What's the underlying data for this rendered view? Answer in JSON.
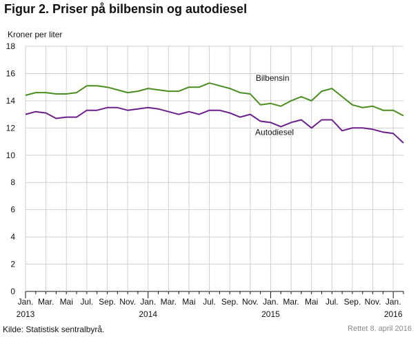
{
  "chart_data": {
    "type": "line",
    "title": "Figur 2. Priser på bilbensin og autodiesel",
    "ylabel": "Kroner per liter",
    "ylim": [
      0,
      18
    ],
    "yticks": [
      0,
      2,
      4,
      6,
      8,
      10,
      12,
      14,
      16,
      18
    ],
    "grid": true,
    "x_tick_labels": [
      "Jan.",
      "Mar.",
      "Mai",
      "Jul.",
      "Sep.",
      "Nov.",
      "Jan.",
      "Mar.",
      "Mai",
      "Jul.",
      "Sep.",
      "Nov.",
      "Jan.",
      "Mar.",
      "Mai",
      "Jul.",
      "Sep.",
      "Nov.",
      "Jan."
    ],
    "year_labels": [
      "2013",
      "2014",
      "2015",
      "2016"
    ],
    "x": [
      "2013-01",
      "2013-02",
      "2013-03",
      "2013-04",
      "2013-05",
      "2013-06",
      "2013-07",
      "2013-08",
      "2013-09",
      "2013-10",
      "2013-11",
      "2013-12",
      "2014-01",
      "2014-02",
      "2014-03",
      "2014-04",
      "2014-05",
      "2014-06",
      "2014-07",
      "2014-08",
      "2014-09",
      "2014-10",
      "2014-11",
      "2014-12",
      "2015-01",
      "2015-02",
      "2015-03",
      "2015-04",
      "2015-05",
      "2015-06",
      "2015-07",
      "2015-08",
      "2015-09",
      "2015-10",
      "2015-11",
      "2015-12",
      "2016-01",
      "2016-02"
    ],
    "series": [
      {
        "name": "Bilbensin",
        "color": "#4a8d1f",
        "values": [
          14.4,
          14.6,
          14.6,
          14.5,
          14.5,
          14.6,
          15.1,
          15.1,
          15.0,
          14.8,
          14.6,
          14.7,
          14.9,
          14.8,
          14.7,
          14.7,
          15.0,
          15.0,
          15.3,
          15.1,
          14.9,
          14.6,
          14.5,
          13.7,
          13.8,
          13.6,
          14.0,
          14.3,
          14.0,
          14.7,
          14.9,
          14.3,
          13.7,
          13.5,
          13.6,
          13.3,
          13.3,
          12.9
        ]
      },
      {
        "name": "Autodiesel",
        "color": "#6b1f8a",
        "values": [
          13.0,
          13.2,
          13.1,
          12.7,
          12.8,
          12.8,
          13.3,
          13.3,
          13.5,
          13.5,
          13.3,
          13.4,
          13.5,
          13.4,
          13.2,
          13.0,
          13.2,
          13.0,
          13.3,
          13.3,
          13.1,
          12.8,
          13.0,
          12.5,
          12.4,
          12.1,
          12.4,
          12.6,
          12.0,
          12.6,
          12.6,
          11.8,
          12.0,
          12.0,
          11.9,
          11.7,
          11.6,
          10.9
        ]
      }
    ],
    "source": "Kilde: Statistisk sentralbyrå.",
    "revised": "Rettet 8. april 2016"
  }
}
